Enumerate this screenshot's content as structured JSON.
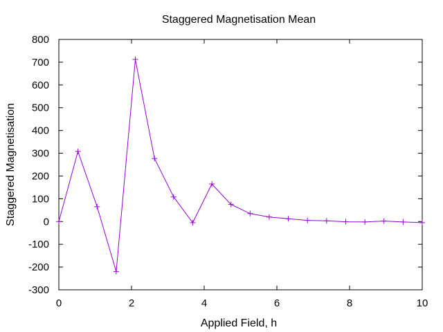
{
  "chart_data": {
    "type": "line",
    "title": "Staggered Magnetisation Mean",
    "xlabel": "Applied Field, h",
    "ylabel": "Staggered Magnetisation",
    "xlim": [
      0,
      10
    ],
    "ylim": [
      -300,
      800
    ],
    "xticks": [
      0,
      2,
      4,
      6,
      8,
      10
    ],
    "yticks": [
      -300,
      -200,
      -100,
      0,
      100,
      200,
      300,
      400,
      500,
      600,
      700,
      800
    ],
    "grid": false,
    "legend": "none",
    "color": "#9400d3",
    "marker": "plus",
    "series": [
      {
        "x": [
          0,
          0.526,
          1.053,
          1.579,
          2.105,
          2.632,
          3.158,
          3.684,
          4.211,
          4.737,
          5.263,
          5.789,
          6.316,
          6.842,
          7.368,
          7.895,
          8.421,
          8.947,
          9.474,
          10
        ],
        "y": [
          0,
          308,
          65,
          -220,
          712,
          277,
          108,
          -5,
          165,
          75,
          35,
          20,
          12,
          5,
          3,
          -1,
          -2,
          2,
          -2,
          -5
        ]
      }
    ]
  }
}
